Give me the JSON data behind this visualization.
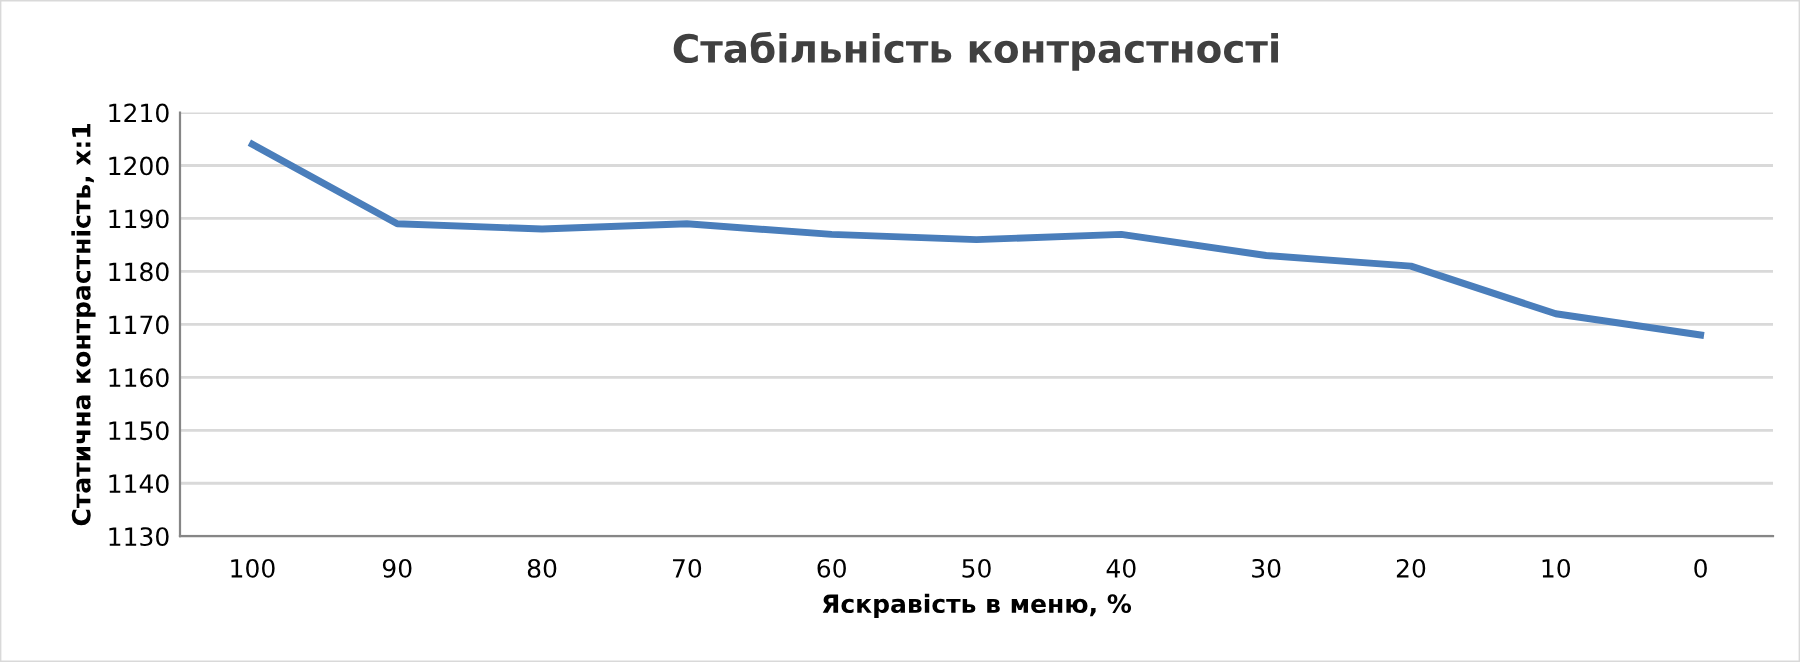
{
  "chart_data": {
    "type": "line",
    "title": "Стабільність контрастності",
    "xlabel": "Яскравість в меню, %",
    "ylabel": "Статична контрастність, х:1",
    "categories": [
      "100",
      "90",
      "80",
      "70",
      "60",
      "50",
      "40",
      "30",
      "20",
      "10",
      "0"
    ],
    "series": [
      {
        "color": "#4a7ebb",
        "values": [
          1204,
          1189,
          1188,
          1189,
          1187,
          1186,
          1187,
          1183,
          1181,
          1172,
          1168
        ]
      }
    ],
    "ylim": [
      1130,
      1210
    ],
    "yticks": [
      1130,
      1140,
      1150,
      1160,
      1170,
      1180,
      1190,
      1200,
      1210
    ],
    "grid": "y",
    "marker": "none",
    "line_style": "solid"
  }
}
